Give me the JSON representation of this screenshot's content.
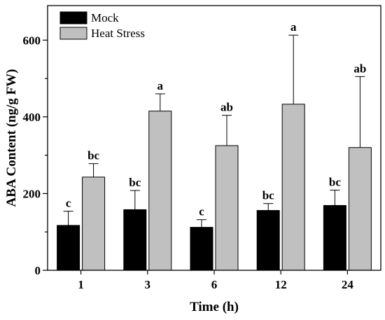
{
  "chart_data": {
    "type": "bar",
    "xlabel": "Time (h)",
    "ylabel": "ABA Content (ng/g FW)",
    "categories": [
      "1",
      "3",
      "6",
      "12",
      "24"
    ],
    "ylim": [
      0,
      690
    ],
    "yticks": [
      0,
      200,
      400,
      600
    ],
    "legend_position": "top-left",
    "grid": false,
    "series": [
      {
        "name": "Mock",
        "color": "#000000",
        "values": [
          117,
          158,
          112,
          156,
          169
        ],
        "errors": [
          37,
          50,
          20,
          18,
          40
        ],
        "significance": [
          "c",
          "bc",
          "c",
          "bc",
          "bc"
        ]
      },
      {
        "name": "Heat Stress",
        "color": "#c0c0c0",
        "values": [
          243,
          415,
          325,
          433,
          320
        ],
        "errors": [
          35,
          45,
          79,
          180,
          185
        ],
        "significance": [
          "bc",
          "a",
          "ab",
          "a",
          "ab"
        ]
      }
    ]
  }
}
